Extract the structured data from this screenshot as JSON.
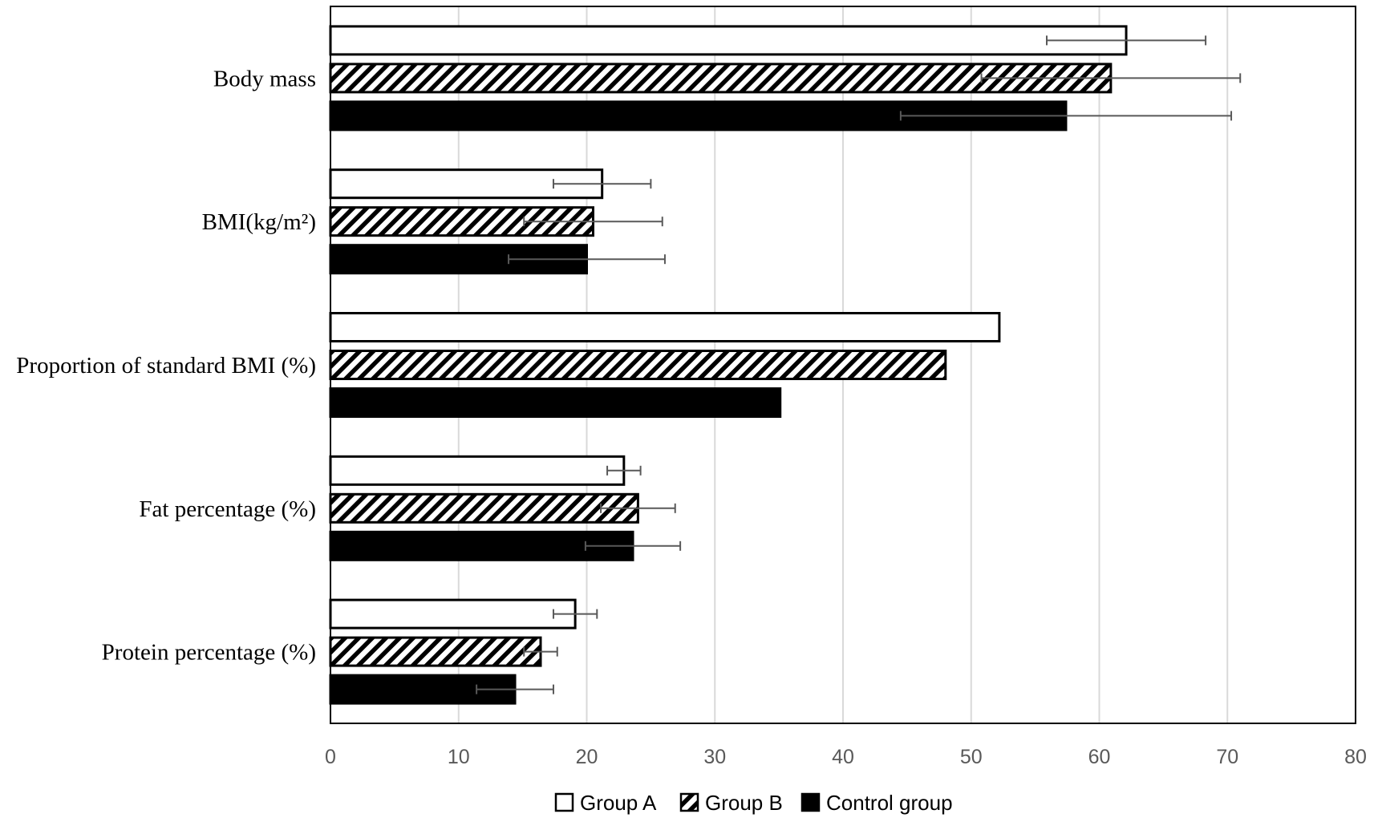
{
  "chart_data": {
    "type": "bar",
    "orientation": "horizontal",
    "categories": [
      "Body mass",
      "BMI(kg/m²)",
      "Proportion of standard BMI (%)",
      "Fat percentage (%)",
      "Protein percentage (%)"
    ],
    "series": [
      {
        "name": "Group A",
        "style": "white",
        "values": [
          62.1,
          21.2,
          52.2,
          22.9,
          19.1
        ],
        "error": [
          6.2,
          3.8,
          null,
          1.3,
          1.7
        ]
      },
      {
        "name": "Group B",
        "style": "hatched",
        "values": [
          60.9,
          20.5,
          48.0,
          24.0,
          16.4
        ],
        "error": [
          10.1,
          5.4,
          null,
          2.9,
          1.3
        ]
      },
      {
        "name": "Control group",
        "style": "black",
        "values": [
          57.4,
          20.0,
          35.1,
          23.6,
          14.4
        ],
        "error": [
          12.9,
          6.1,
          null,
          3.7,
          3.0
        ]
      }
    ],
    "xlim": [
      0,
      80
    ],
    "xticks": [
      "0",
      "10",
      "20",
      "30",
      "40",
      "50",
      "60",
      "70",
      "80"
    ],
    "grid": "vertical",
    "legend_position": "bottom",
    "title": "",
    "xlabel": "",
    "ylabel": "",
    "colors": {
      "bar_edge": "#000000",
      "black_fill": "#000000",
      "white_fill": "#ffffff",
      "gridline": "#d9d9d9",
      "error_bar": "#595959",
      "tick_text": "#595959"
    }
  }
}
